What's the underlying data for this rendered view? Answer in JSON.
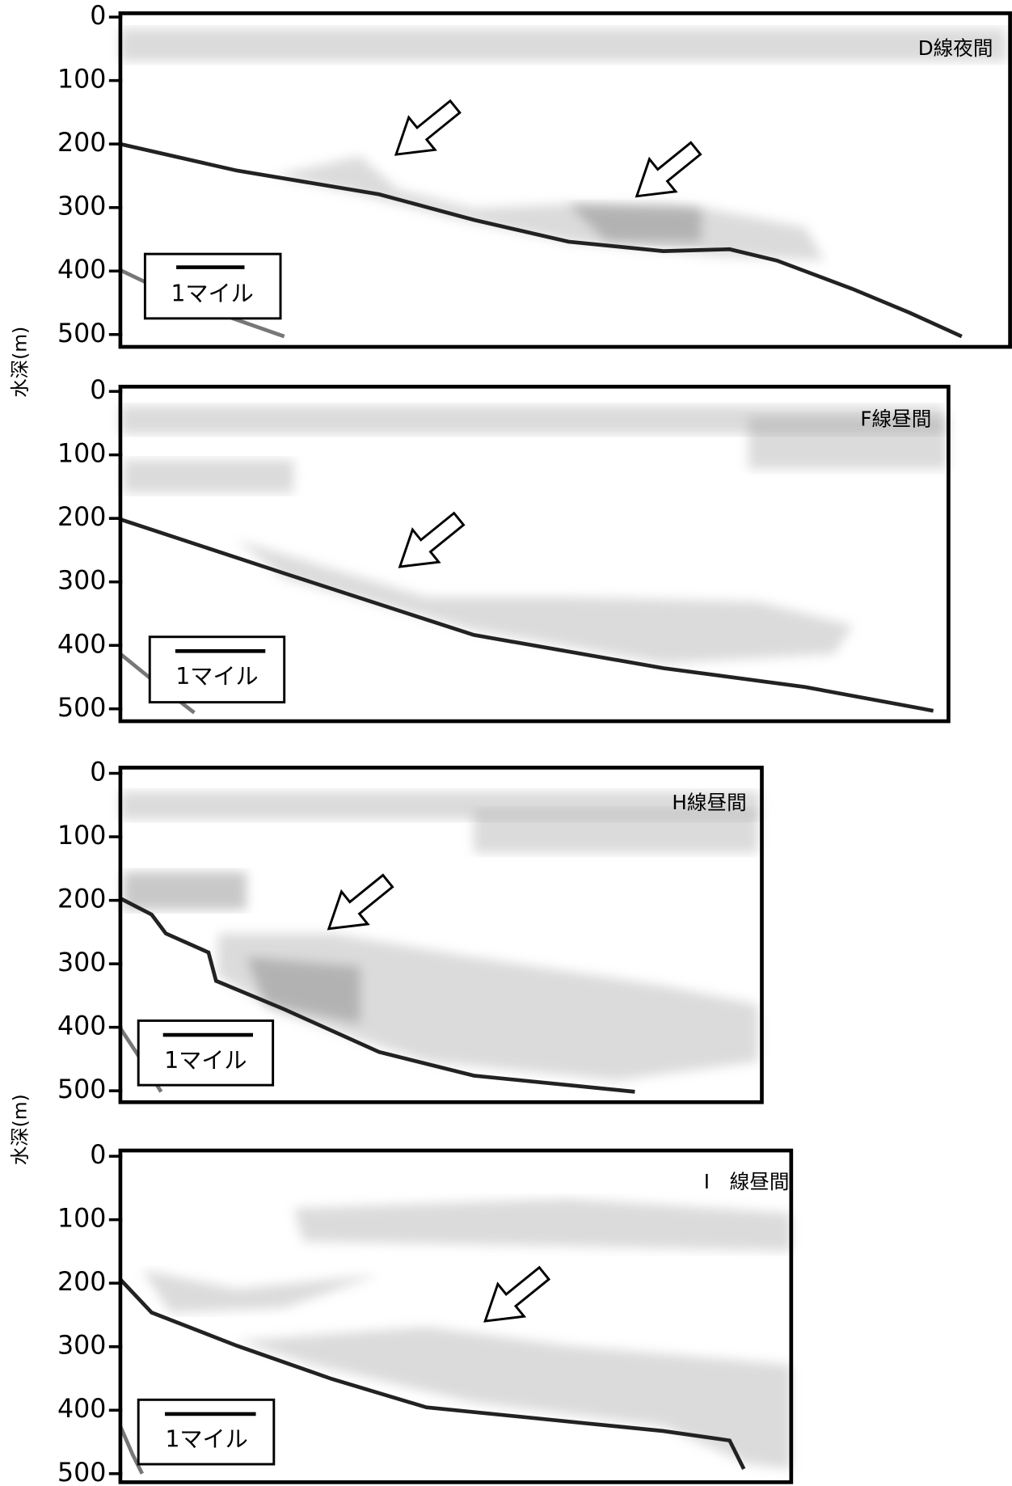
{
  "y_axis_label": "水深(m)",
  "panels": [
    {
      "label": "D線夜間",
      "yticks": [
        0,
        100,
        200,
        300,
        400,
        500
      ],
      "scale_label": "1マイル"
    },
    {
      "label": "F線昼間",
      "yticks": [
        0,
        100,
        200,
        300,
        400,
        500
      ],
      "scale_label": "1マイル"
    },
    {
      "label": "H線昼間",
      "yticks": [
        0,
        100,
        200,
        300,
        400,
        500
      ],
      "scale_label": "1マイル"
    },
    {
      "label": "I　線昼間",
      "yticks": [
        0,
        100,
        200,
        300,
        400,
        500
      ],
      "scale_label": "1マイル"
    }
  ]
}
